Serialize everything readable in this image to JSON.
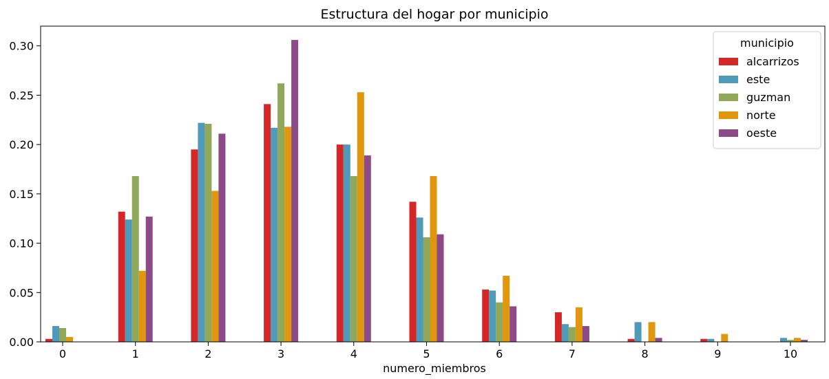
{
  "chart_data": {
    "type": "bar",
    "title": "Estructura del hogar por municipio",
    "xlabel": "numero_miembros",
    "ylabel": "",
    "categories": [
      "0",
      "1",
      "2",
      "3",
      "4",
      "5",
      "6",
      "7",
      "8",
      "9",
      "10"
    ],
    "ylim": [
      0,
      0.32
    ],
    "yticks": [
      "0.00",
      "0.05",
      "0.10",
      "0.15",
      "0.20",
      "0.25",
      "0.30"
    ],
    "legend": {
      "title": "municipio",
      "placement": "top-right"
    },
    "series": [
      {
        "name": "alcarrizos",
        "color": "#d62728",
        "values": [
          0.003,
          0.132,
          0.195,
          0.241,
          0.2,
          0.142,
          0.053,
          0.03,
          0.003,
          0.003,
          0.0
        ]
      },
      {
        "name": "este",
        "color": "#4e9ab8",
        "values": [
          0.016,
          0.124,
          0.222,
          0.217,
          0.2,
          0.126,
          0.052,
          0.018,
          0.02,
          0.003,
          0.004
        ]
      },
      {
        "name": "guzman",
        "color": "#8fa85a",
        "values": [
          0.014,
          0.168,
          0.221,
          0.262,
          0.168,
          0.106,
          0.04,
          0.015,
          0.0,
          0.0,
          0.002
        ]
      },
      {
        "name": "norte",
        "color": "#e0960d",
        "values": [
          0.005,
          0.072,
          0.153,
          0.218,
          0.253,
          0.168,
          0.067,
          0.035,
          0.02,
          0.008,
          0.004
        ]
      },
      {
        "name": "oeste",
        "color": "#8c4a87",
        "values": [
          0.0,
          0.127,
          0.211,
          0.306,
          0.189,
          0.109,
          0.036,
          0.016,
          0.004,
          0.0,
          0.002
        ]
      }
    ]
  }
}
